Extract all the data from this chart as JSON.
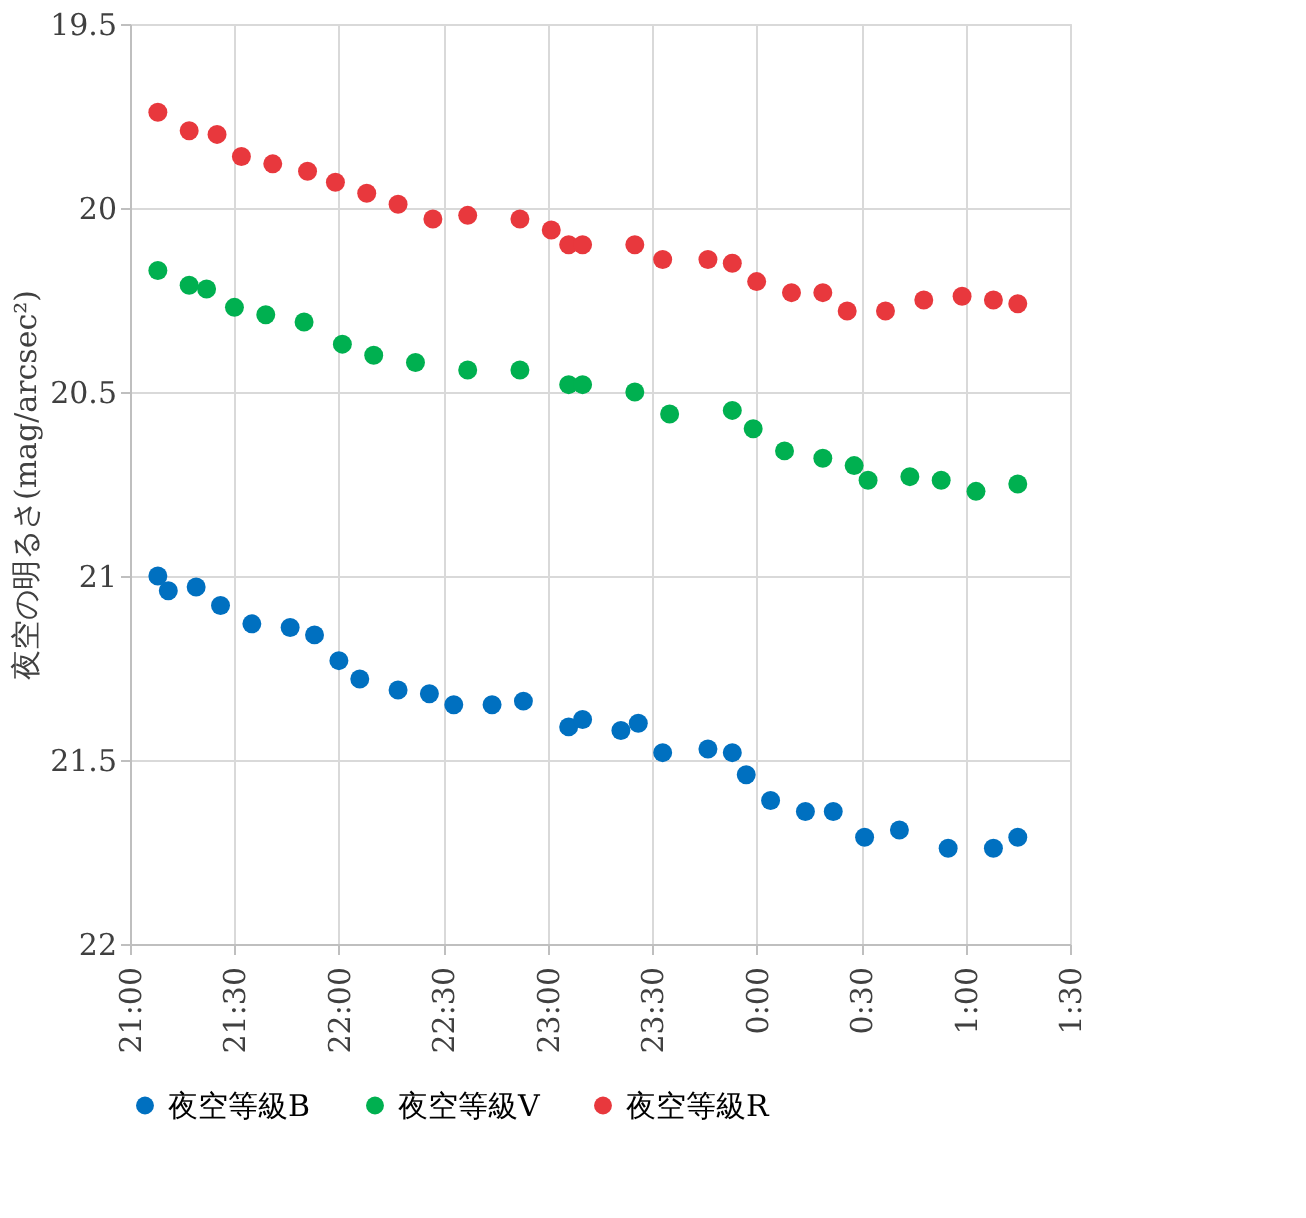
{
  "chart_data": {
    "type": "scatter",
    "ylabel": "夜空の明るさ(mag/arcsec²)",
    "marker": "circle",
    "grid": true,
    "legend": "bottom",
    "xlim": [
      "2000-01-01T21:00",
      "2000-01-02T01:30"
    ],
    "xticks": [
      {
        "value": "2000-01-01T21:00",
        "label": "21:00"
      },
      {
        "value": "2000-01-01T21:30",
        "label": "21:30"
      },
      {
        "value": "2000-01-01T22:00",
        "label": "22:00"
      },
      {
        "value": "2000-01-01T22:30",
        "label": "22:30"
      },
      {
        "value": "2000-01-01T23:00",
        "label": "23:00"
      },
      {
        "value": "2000-01-01T23:30",
        "label": "23:30"
      },
      {
        "value": "2000-01-02T00:00",
        "label": "0:00"
      },
      {
        "value": "2000-01-02T00:30",
        "label": "0:30"
      },
      {
        "value": "2000-01-02T01:00",
        "label": "1:00"
      },
      {
        "value": "2000-01-02T01:30",
        "label": "1:30"
      }
    ],
    "ylim": [
      22,
      19.5
    ],
    "yticks": [
      19.5,
      20,
      20.5,
      21,
      21.5,
      22
    ],
    "series": [
      {
        "name": "夜空等級B",
        "color": "#0070c0",
        "x": [
          "2000-01-01T21:08",
          "2000-01-01T21:11",
          "2000-01-01T21:19",
          "2000-01-01T21:26",
          "2000-01-01T21:35",
          "2000-01-01T21:46",
          "2000-01-01T21:53",
          "2000-01-01T22:00",
          "2000-01-01T22:06",
          "2000-01-01T22:17",
          "2000-01-01T22:26",
          "2000-01-01T22:33",
          "2000-01-01T22:44",
          "2000-01-01T22:53",
          "2000-01-01T23:06",
          "2000-01-01T23:10",
          "2000-01-01T23:21",
          "2000-01-01T23:26",
          "2000-01-01T23:33",
          "2000-01-01T23:46",
          "2000-01-01T23:53",
          "2000-01-01T23:57",
          "2000-01-02T00:04",
          "2000-01-02T00:14",
          "2000-01-02T00:22",
          "2000-01-02T00:31",
          "2000-01-02T00:41",
          "2000-01-02T00:55",
          "2000-01-02T01:08",
          "2000-01-02T01:15"
        ],
        "values": [
          21.0,
          21.04,
          21.03,
          21.08,
          21.13,
          21.14,
          21.16,
          21.23,
          21.28,
          21.31,
          21.32,
          21.35,
          21.35,
          21.34,
          21.41,
          21.39,
          21.42,
          21.4,
          21.48,
          21.47,
          21.48,
          21.54,
          21.61,
          21.64,
          21.64,
          21.71,
          21.69,
          21.74,
          21.74,
          21.71
        ]
      },
      {
        "name": "夜空等級V",
        "color": "#00b050",
        "x": [
          "2000-01-01T21:08",
          "2000-01-01T21:17",
          "2000-01-01T21:22",
          "2000-01-01T21:30",
          "2000-01-01T21:39",
          "2000-01-01T21:50",
          "2000-01-01T22:01",
          "2000-01-01T22:10",
          "2000-01-01T22:22",
          "2000-01-01T22:37",
          "2000-01-01T22:52",
          "2000-01-01T23:06",
          "2000-01-01T23:10",
          "2000-01-01T23:25",
          "2000-01-01T23:35",
          "2000-01-01T23:53",
          "2000-01-01T23:59",
          "2000-01-02T00:08",
          "2000-01-02T00:19",
          "2000-01-02T00:28",
          "2000-01-02T00:32",
          "2000-01-02T00:44",
          "2000-01-02T00:53",
          "2000-01-02T01:03",
          "2000-01-02T01:15"
        ],
        "values": [
          20.17,
          20.21,
          20.22,
          20.27,
          20.29,
          20.31,
          20.37,
          20.4,
          20.42,
          20.44,
          20.44,
          20.48,
          20.48,
          20.5,
          20.56,
          20.55,
          20.6,
          20.66,
          20.68,
          20.7,
          20.74,
          20.73,
          20.74,
          20.77,
          20.75
        ]
      },
      {
        "name": "夜空等級R",
        "color": "#e8383d",
        "x": [
          "2000-01-01T21:08",
          "2000-01-01T21:17",
          "2000-01-01T21:25",
          "2000-01-01T21:32",
          "2000-01-01T21:41",
          "2000-01-01T21:51",
          "2000-01-01T21:59",
          "2000-01-01T22:08",
          "2000-01-01T22:17",
          "2000-01-01T22:27",
          "2000-01-01T22:37",
          "2000-01-01T22:52",
          "2000-01-01T23:01",
          "2000-01-01T23:06",
          "2000-01-01T23:10",
          "2000-01-01T23:25",
          "2000-01-01T23:33",
          "2000-01-01T23:46",
          "2000-01-01T23:53",
          "2000-01-02T00:00",
          "2000-01-02T00:10",
          "2000-01-02T00:19",
          "2000-01-02T00:26",
          "2000-01-02T00:37",
          "2000-01-02T00:48",
          "2000-01-02T00:59",
          "2000-01-02T01:08",
          "2000-01-02T01:15"
        ],
        "values": [
          19.74,
          19.79,
          19.8,
          19.86,
          19.88,
          19.9,
          19.93,
          19.96,
          19.99,
          20.03,
          20.02,
          20.03,
          20.06,
          20.1,
          20.1,
          20.1,
          20.14,
          20.14,
          20.15,
          20.2,
          20.23,
          20.23,
          20.28,
          20.28,
          20.25,
          20.24,
          20.25,
          20.26
        ]
      }
    ]
  }
}
